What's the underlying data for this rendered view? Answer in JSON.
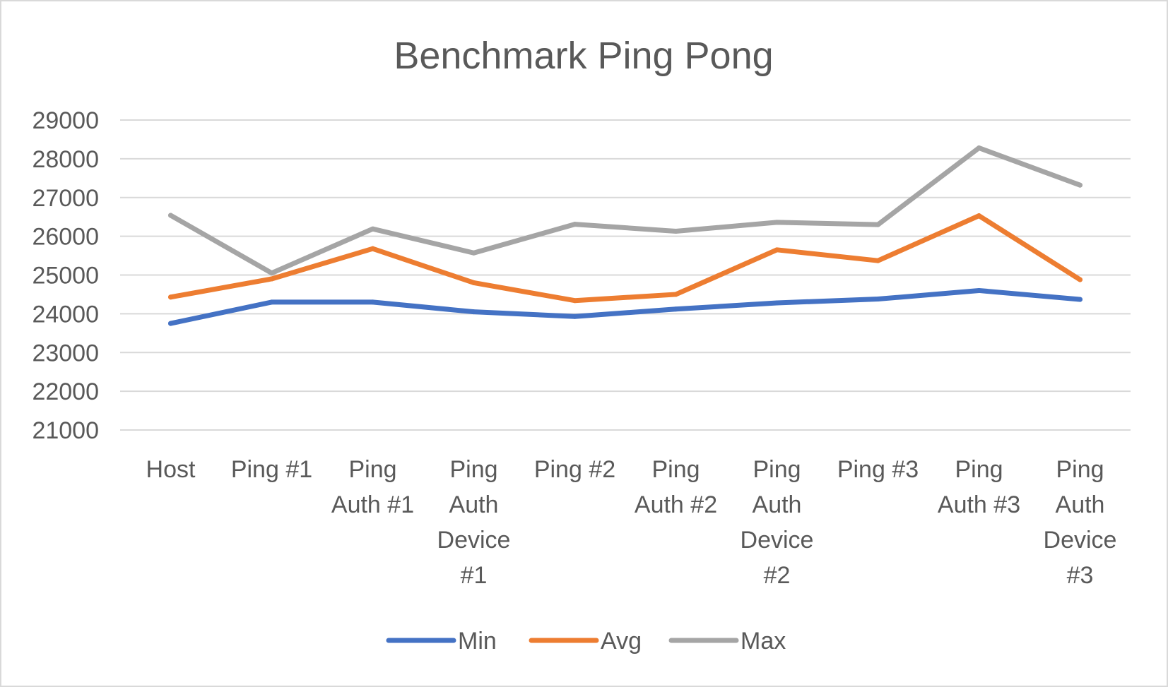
{
  "chart_data": {
    "type": "line",
    "title": "Benchmark Ping Pong",
    "xlabel": "",
    "ylabel": "",
    "ylim": [
      21000,
      29000
    ],
    "yticks": [
      29000,
      28000,
      27000,
      26000,
      25000,
      24000,
      23000,
      22000,
      21000
    ],
    "grid": true,
    "legend_position": "bottom",
    "categories": [
      [
        "Host"
      ],
      [
        "Ping #1"
      ],
      [
        "Ping",
        "Auth #1"
      ],
      [
        "Ping",
        "Auth",
        "Device",
        "#1"
      ],
      [
        "Ping #2"
      ],
      [
        "Ping",
        "Auth #2"
      ],
      [
        "Ping",
        "Auth",
        "Device",
        "#2"
      ],
      [
        "Ping #3"
      ],
      [
        "Ping",
        "Auth #3"
      ],
      [
        "Ping",
        "Auth",
        "Device",
        "#3"
      ]
    ],
    "series": [
      {
        "name": "Min",
        "color": "#4472c4",
        "values": [
          23750,
          24300,
          24300,
          24050,
          23930,
          24120,
          24280,
          24380,
          24600,
          24370
        ]
      },
      {
        "name": "Avg",
        "color": "#ed7d31",
        "values": [
          24430,
          24900,
          25680,
          24800,
          24340,
          24500,
          25650,
          25370,
          26530,
          24880
        ]
      },
      {
        "name": "Max",
        "color": "#a5a5a5",
        "values": [
          26540,
          25050,
          26190,
          25570,
          26310,
          26130,
          26360,
          26300,
          28280,
          27320
        ]
      }
    ]
  }
}
